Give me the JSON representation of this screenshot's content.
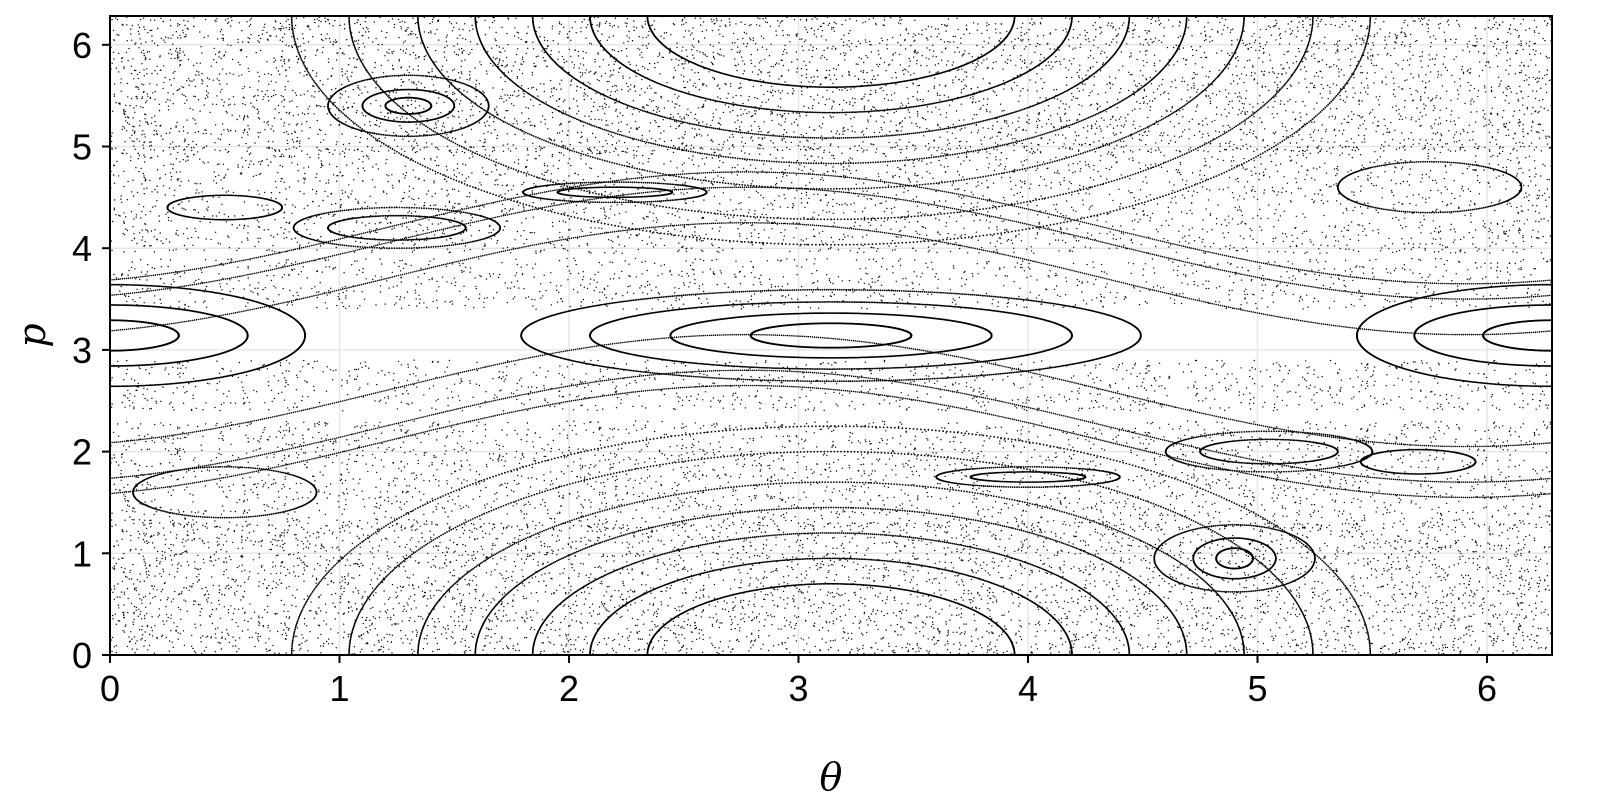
{
  "chart_data": {
    "type": "scatter",
    "title": "",
    "xlabel": "θ",
    "ylabel": "p",
    "xlim": [
      0,
      6.2832
    ],
    "ylim": [
      0,
      6.2832
    ],
    "x_ticks": [
      0,
      1,
      2,
      3,
      4,
      5,
      6
    ],
    "x_tick_labels": [
      "0",
      "1",
      "2",
      "3",
      "4",
      "5",
      "6"
    ],
    "y_ticks": [
      0,
      1,
      2,
      3,
      4,
      5,
      6
    ],
    "y_tick_labels": [
      "0",
      "1",
      "2",
      "3",
      "4",
      "5",
      "6"
    ],
    "grid": true,
    "colors": {
      "points": "#000000",
      "grid": "#e6e6e6",
      "frame": "#000000"
    },
    "series": [
      {
        "kind": "main-island-orbits",
        "center": [
          3.1416,
          6.2832
        ],
        "radii": [
          [
            0.8,
            0.7
          ],
          [
            1.05,
            0.95
          ],
          [
            1.3,
            1.2
          ],
          [
            1.55,
            1.45
          ],
          [
            1.8,
            1.7
          ],
          [
            2.1,
            2.0
          ],
          [
            2.35,
            2.25
          ]
        ]
      },
      {
        "kind": "secondary-island-orbits",
        "center": [
          3.1416,
          3.1416
        ],
        "radii": [
          [
            0.35,
            0.12
          ],
          [
            0.7,
            0.22
          ],
          [
            1.05,
            0.33
          ],
          [
            1.35,
            0.45
          ]
        ]
      },
      {
        "kind": "edge-island-orbits",
        "center": [
          0,
          3.1416
        ],
        "radii": [
          [
            0.3,
            0.15
          ],
          [
            0.6,
            0.3
          ],
          [
            0.85,
            0.5
          ]
        ]
      },
      {
        "kind": "edge-island-orbits",
        "center": [
          6.2832,
          3.1416
        ],
        "radii": [
          [
            0.3,
            0.15
          ],
          [
            0.6,
            0.3
          ],
          [
            0.85,
            0.5
          ]
        ]
      },
      {
        "kind": "small-island-orbits",
        "islands": [
          {
            "center": [
              1.3,
              5.4
            ],
            "radii": [
              [
                0.1,
                0.08
              ],
              [
                0.2,
                0.16
              ],
              [
                0.35,
                0.3
              ]
            ]
          },
          {
            "center": [
              4.9,
              0.95
            ],
            "radii": [
              [
                0.08,
                0.1
              ],
              [
                0.18,
                0.2
              ],
              [
                0.35,
                0.33
              ]
            ]
          },
          {
            "center": [
              1.25,
              4.2
            ],
            "radii": [
              [
                0.3,
                0.12
              ],
              [
                0.45,
                0.2
              ]
            ]
          },
          {
            "center": [
              5.05,
              2.0
            ],
            "radii": [
              [
                0.3,
                0.12
              ],
              [
                0.45,
                0.2
              ]
            ]
          },
          {
            "center": [
              4.0,
              1.75
            ],
            "radii": [
              [
                0.25,
                0.05
              ],
              [
                0.4,
                0.1
              ]
            ]
          },
          {
            "center": [
              2.2,
              4.55
            ],
            "radii": [
              [
                0.25,
                0.05
              ],
              [
                0.4,
                0.1
              ]
            ]
          },
          {
            "center": [
              0.5,
              4.4
            ],
            "radii": [
              [
                0.25,
                0.12
              ]
            ]
          },
          {
            "center": [
              5.7,
              1.9
            ],
            "radii": [
              [
                0.25,
                0.12
              ]
            ]
          },
          {
            "center": [
              5.75,
              4.6
            ],
            "radii": [
              [
                0.4,
                0.25
              ]
            ]
          },
          {
            "center": [
              0.5,
              1.6
            ],
            "radii": [
              [
                0.4,
                0.25
              ]
            ]
          }
        ]
      },
      {
        "kind": "sinusoidal-invariant-curves",
        "offsets": [
          2.1,
          2.25,
          2.6,
          3.7,
          4.05,
          4.2
        ],
        "amplitude": 0.55
      },
      {
        "kind": "chaotic-sea",
        "bands": [
          {
            "y": [
              0,
              1.3
            ],
            "x": [
              0,
              6.2832
            ],
            "density": 5000
          },
          {
            "y": [
              4.95,
              6.2832
            ],
            "x": [
              0,
              6.2832
            ],
            "density": 5000
          },
          {
            "y": [
              1.25,
              2.3
            ],
            "x": [
              0,
              6.2832
            ],
            "density": 3000
          },
          {
            "y": [
              3.95,
              5.0
            ],
            "x": [
              0,
              6.2832
            ],
            "density": 3000
          },
          {
            "y": [
              2.4,
              2.9
            ],
            "x": [
              0,
              6.2832
            ],
            "density": 1200
          },
          {
            "y": [
              3.4,
              3.9
            ],
            "x": [
              0,
              6.2832
            ],
            "density": 1200
          }
        ]
      }
    ]
  }
}
